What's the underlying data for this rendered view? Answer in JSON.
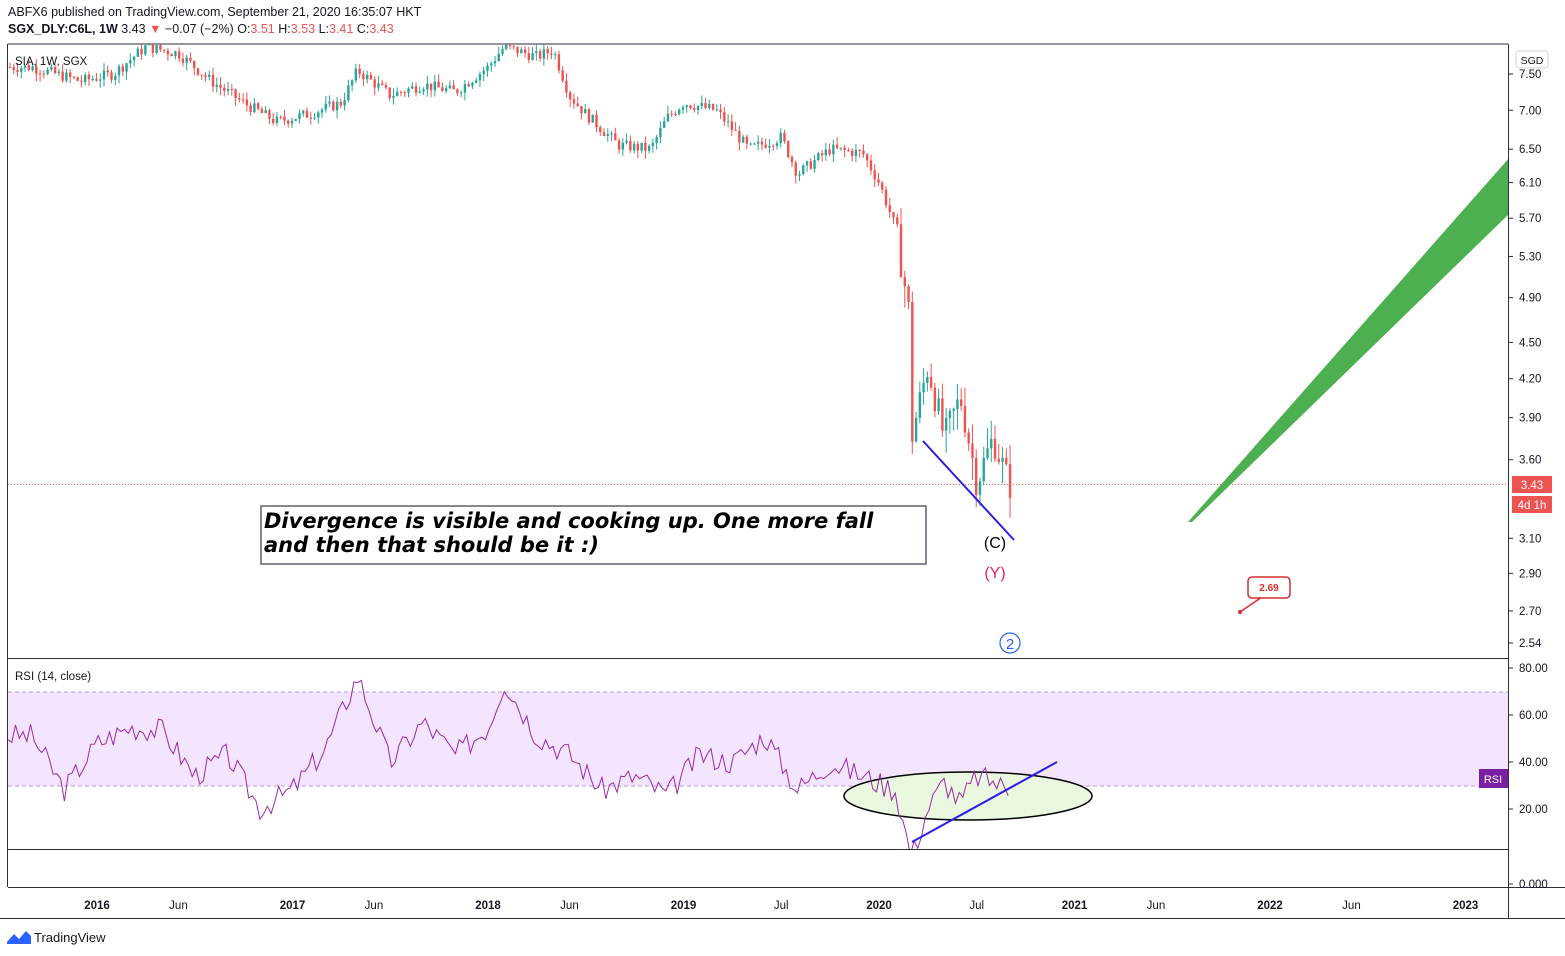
{
  "header": {
    "publisher_line": "ABFX6 published on TradingView.com, September 21, 2020 16:35:07 HKT",
    "symbol": "SGX_DLY:C6L, 1W",
    "last": "3.43",
    "change_arrow": "▼",
    "change": "−0.07 (−2%)",
    "o_label": "O:",
    "o_value": "3.51",
    "h_label": "H:",
    "h_value": "3.53",
    "l_label": "L:",
    "l_value": "3.41",
    "c_label": "C:",
    "c_value": "3.43"
  },
  "legend_label": "SIA, 1W, SGX",
  "currency_badge": "SGD",
  "price_tag": "3.43",
  "countdown_tag": "4d 1h",
  "annotation_text": "Divergence is visible and cooking up. One more fall and then that should be it :)",
  "wave_labels": {
    "c": "(C)",
    "y": "(Y)",
    "two": "2"
  },
  "target_label": "2.69",
  "rsi_title": "RSI (14, close)",
  "rsi_badge": "RSI",
  "footer_brand": "TradingView",
  "colors": {
    "up": "#26a69a",
    "down": "#ef5350",
    "rsi_line": "#9c27b0",
    "rsi_band": "#f3e5fd",
    "green_arrow": "#4caf50",
    "blue_line": "#2b1ee6",
    "ellipse_fill": "#e9f8df",
    "wave_y": "#e91e63",
    "badge_purple": "#7b1fa2"
  },
  "chart_data": [
    {
      "type": "candlestick",
      "title": "SIA, 1W, SGX",
      "ylabel": "SGD",
      "y_axis_ticks": [
        "7.50",
        "7.00",
        "6.50",
        "6.10",
        "5.70",
        "5.30",
        "4.90",
        "4.50",
        "4.20",
        "3.90",
        "3.60",
        "3.10",
        "2.90",
        "2.70",
        "2.54"
      ],
      "x_axis_ticks": [
        "2016",
        "Jun",
        "2017",
        "Jun",
        "2018",
        "Jun",
        "2019",
        "Jul",
        "2020",
        "Jul",
        "2021",
        "Jun",
        "2022",
        "Jun",
        "2023"
      ],
      "x_axis_major": [
        "2016",
        "2017",
        "2018",
        "2019",
        "2020",
        "2021",
        "2022",
        "2023"
      ],
      "scale": "log",
      "last_close": 3.43,
      "weekly_close_path": [
        [
          "2015-09",
          7.6
        ],
        [
          "2015-12",
          7.4
        ],
        [
          "2016-02",
          7.5
        ],
        [
          "2016-04",
          7.9
        ],
        [
          "2016-06",
          7.8
        ],
        [
          "2016-08",
          7.4
        ],
        [
          "2016-10",
          7.1
        ],
        [
          "2016-12",
          6.85
        ],
        [
          "2017-02",
          6.95
        ],
        [
          "2017-04",
          7.1
        ],
        [
          "2017-05",
          7.55
        ],
        [
          "2017-07",
          7.2
        ],
        [
          "2017-09",
          7.35
        ],
        [
          "2017-11",
          7.25
        ],
        [
          "2018-01",
          7.6
        ],
        [
          "2018-02",
          7.9
        ],
        [
          "2018-04",
          7.75
        ],
        [
          "2018-05",
          7.85
        ],
        [
          "2018-06",
          7.2
        ],
        [
          "2018-07",
          6.95
        ],
        [
          "2018-09",
          6.55
        ],
        [
          "2018-11",
          6.5
        ],
        [
          "2018-12",
          6.9
        ],
        [
          "2019-01",
          7.1
        ],
        [
          "2019-03",
          7.0
        ],
        [
          "2019-05",
          6.5
        ],
        [
          "2019-07",
          6.65
        ],
        [
          "2019-08",
          6.2
        ],
        [
          "2019-10",
          6.5
        ],
        [
          "2019-12",
          6.45
        ],
        [
          "2020-01",
          6.1
        ],
        [
          "2020-02",
          5.6
        ],
        [
          "2020-03",
          4.6
        ],
        [
          "2020-03",
          3.75
        ],
        [
          "2020-04",
          4.3
        ],
        [
          "2020-05",
          3.75
        ],
        [
          "2020-06",
          4.05
        ],
        [
          "2020-07",
          3.45
        ],
        [
          "2020-08",
          3.75
        ],
        [
          "2020-09",
          3.43
        ]
      ],
      "annotations": [
        {
          "label": "(C)",
          "price": 3.1
        },
        {
          "label": "(Y)",
          "price": 2.9
        },
        {
          "label": "2",
          "price": 2.54
        },
        {
          "label": "2.69",
          "price": 2.69
        }
      ],
      "trendline": {
        "from": [
          "2020-03",
          3.72
        ],
        "to": [
          "2020-09",
          3.08
        ]
      },
      "projection_arrow": {
        "from": [
          "2021-05",
          3.2
        ],
        "to": [
          "2023-02",
          6.4
        ]
      }
    },
    {
      "type": "line",
      "title": "RSI (14, close)",
      "y_axis_ticks": [
        "80.00",
        "60.00",
        "40.00",
        "20.00",
        "0.000"
      ],
      "bands": [
        30,
        70
      ],
      "ylim": [
        0,
        80
      ],
      "series": [
        {
          "name": "RSI (14, close)",
          "x": [
            "2015-09",
            "2015-11",
            "2016-01",
            "2016-03",
            "2016-05",
            "2016-07",
            "2016-09",
            "2016-11",
            "2017-01",
            "2017-03",
            "2017-05",
            "2017-07",
            "2017-09",
            "2017-11",
            "2018-01",
            "2018-02",
            "2018-04",
            "2018-06",
            "2018-08",
            "2018-10",
            "2018-12",
            "2019-02",
            "2019-04",
            "2019-06",
            "2019-08",
            "2019-10",
            "2019-12",
            "2020-02",
            "2020-03",
            "2020-04",
            "2020-05",
            "2020-06",
            "2020-07",
            "2020-08",
            "2020-09"
          ],
          "values": [
            55,
            35,
            52,
            58,
            57,
            40,
            48,
            28,
            35,
            50,
            77,
            45,
            60,
            48,
            58,
            75,
            55,
            48,
            35,
            40,
            33,
            48,
            45,
            55,
            35,
            45,
            40,
            35,
            10,
            28,
            38,
            30,
            40,
            38,
            35
          ]
        }
      ]
    }
  ]
}
